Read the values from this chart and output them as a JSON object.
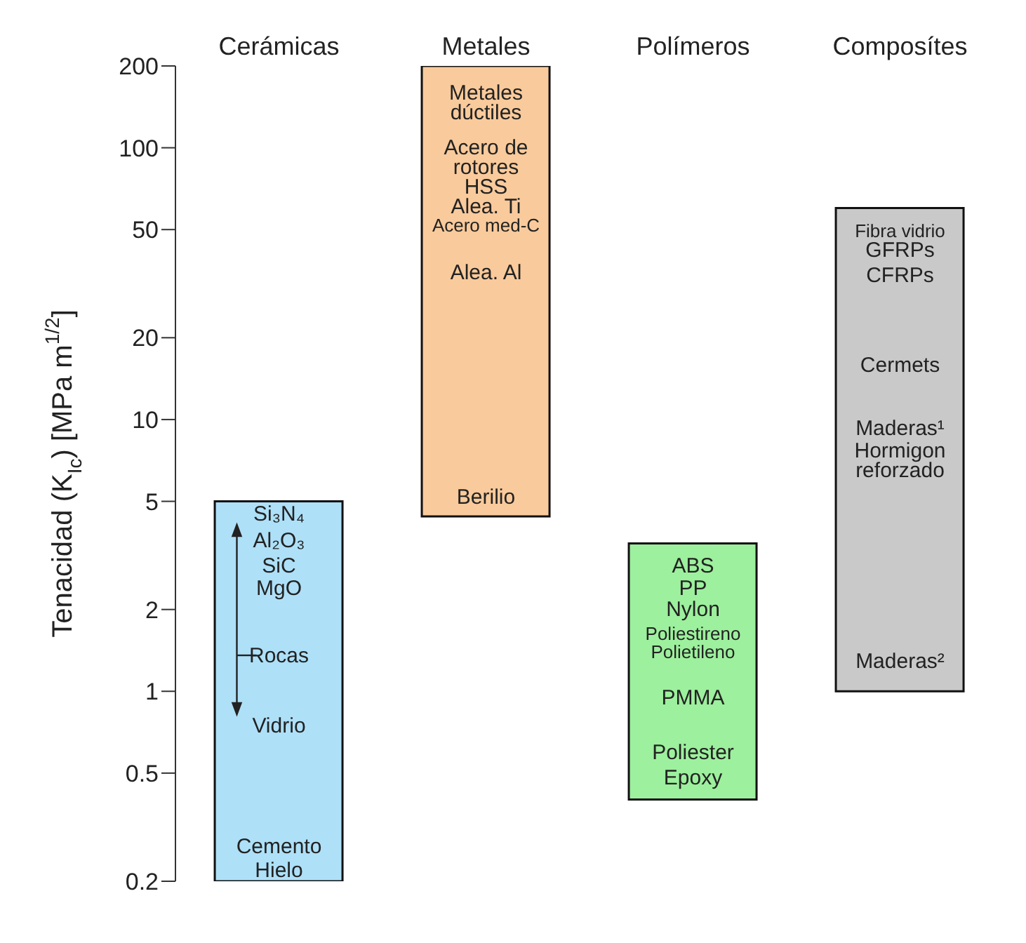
{
  "chart_data": {
    "type": "bar",
    "ylabel": "Tenacidad (K$_{Ic}$)  [MPa m$^{1/2}$]",
    "categories": [
      "Cerámicas",
      "Metales",
      "Polímeros",
      "Composítes"
    ],
    "base": [
      0.2,
      4.4,
      0.4,
      1
    ],
    "values": [
      4.8,
      195.6,
      3.1,
      59
    ],
    "colors": [
      "#aee0f8",
      "#f9ca9b",
      "#9df09d",
      "#c9c9c9"
    ],
    "log": true,
    "ylim": [
      0.2,
      200
    ],
    "yticks": [
      0.2,
      0.5,
      1,
      2,
      5,
      10,
      20,
      50,
      100,
      200
    ],
    "grid": false,
    "legend": false,
    "annotations": [
      "Si₃N₄",
      "Al₂O₃",
      "SiC",
      "MgO",
      "Rocas",
      "Vidrio",
      "Cemento",
      "Hielo",
      "Metales",
      "dúctiles",
      "Acero de",
      "rotores",
      "HSS",
      "Alea. Ti",
      "Acero med-C",
      "Alea. Al",
      "Berilio",
      "ABS",
      "PP",
      "Nylon",
      "Poliestireno",
      "Polietileno",
      "PMMA",
      "Poliester",
      "Epoxy",
      "Fibra vidrio",
      "GFRPs",
      "CFRPs",
      "Cermets",
      "Maderas¹",
      "Hormigon",
      "reforzado",
      "Maderas²"
    ]
  }
}
